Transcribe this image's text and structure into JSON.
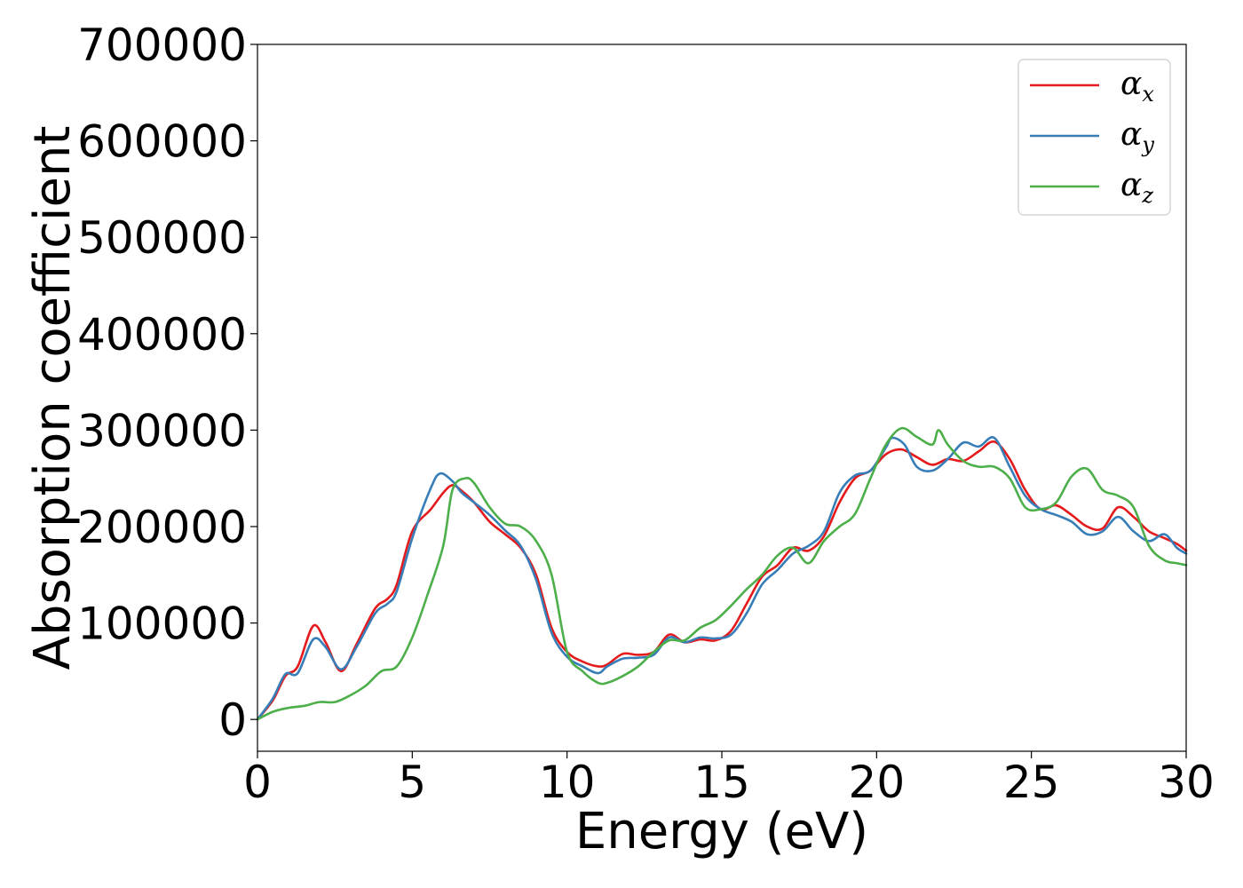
{
  "chart_data": {
    "type": "line",
    "xlabel": "Energy (eV)",
    "ylabel": "Absorption coefficient",
    "xlim": [
      0,
      30
    ],
    "ylim": [
      -33000,
      700000
    ],
    "x_ticks": [
      0,
      5,
      10,
      15,
      20,
      25,
      30
    ],
    "y_ticks": [
      0,
      100000,
      200000,
      300000,
      400000,
      500000,
      600000,
      700000
    ],
    "grid": false,
    "legend_position": "top-right",
    "series": [
      {
        "name": "α",
        "subscript": "x",
        "color": "#e41a1c",
        "x": [
          0,
          0.5,
          0.9,
          1.3,
          1.8,
          2.2,
          2.7,
          3.2,
          3.8,
          4.2,
          4.5,
          5.0,
          5.6,
          6.0,
          6.3,
          6.6,
          7.0,
          7.5,
          8.0,
          8.5,
          9.0,
          9.5,
          10.0,
          10.5,
          11.0,
          11.3,
          11.8,
          12.3,
          12.8,
          13.3,
          13.8,
          14.3,
          14.8,
          15.3,
          15.8,
          16.3,
          16.8,
          17.3,
          17.8,
          18.3,
          18.8,
          19.3,
          19.8,
          20.3,
          20.8,
          21.3,
          21.8,
          22.3,
          22.8,
          23.3,
          23.8,
          24.3,
          24.8,
          25.3,
          25.8,
          26.3,
          26.8,
          27.3,
          27.8,
          28.3,
          28.8,
          29.3,
          29.7,
          30.0
        ],
        "y": [
          0,
          20000,
          45000,
          55000,
          97000,
          80000,
          50000,
          78000,
          115000,
          125000,
          140000,
          195000,
          218000,
          235000,
          243000,
          237000,
          225000,
          205000,
          192000,
          178000,
          150000,
          95000,
          70000,
          60000,
          55000,
          57000,
          68000,
          67000,
          70000,
          88000,
          80000,
          83000,
          82000,
          92000,
          120000,
          148000,
          160000,
          178000,
          175000,
          190000,
          225000,
          250000,
          258000,
          275000,
          280000,
          272000,
          264000,
          270000,
          268000,
          278000,
          288000,
          270000,
          238000,
          218000,
          222000,
          212000,
          200000,
          198000,
          220000,
          210000,
          195000,
          188000,
          182000,
          175000
        ]
      },
      {
        "name": "α",
        "subscript": "y",
        "color": "#377eb8",
        "x": [
          0,
          0.5,
          0.9,
          1.3,
          1.8,
          2.2,
          2.7,
          3.2,
          3.8,
          4.2,
          4.5,
          5.0,
          5.6,
          5.9,
          6.3,
          6.6,
          7.0,
          7.5,
          8.0,
          8.5,
          9.0,
          9.5,
          10.0,
          10.5,
          11.0,
          11.3,
          11.8,
          12.3,
          12.8,
          13.3,
          13.8,
          14.3,
          14.8,
          15.3,
          15.8,
          16.3,
          16.8,
          17.3,
          17.8,
          18.3,
          18.8,
          19.3,
          19.8,
          20.3,
          20.5,
          20.9,
          21.3,
          21.8,
          22.3,
          22.8,
          23.3,
          23.8,
          24.3,
          24.8,
          25.3,
          25.8,
          26.3,
          26.8,
          27.3,
          27.8,
          28.3,
          28.8,
          29.3,
          29.7,
          30.0
        ],
        "y": [
          0,
          22000,
          47000,
          48000,
          83000,
          75000,
          52000,
          75000,
          110000,
          120000,
          133000,
          188000,
          240000,
          255000,
          247000,
          235000,
          225000,
          212000,
          196000,
          180000,
          145000,
          90000,
          65000,
          55000,
          48000,
          55000,
          63000,
          64000,
          67000,
          85000,
          80000,
          85000,
          84000,
          88000,
          110000,
          140000,
          155000,
          172000,
          180000,
          195000,
          235000,
          253000,
          258000,
          282000,
          292000,
          285000,
          262000,
          258000,
          270000,
          287000,
          283000,
          292000,
          262000,
          232000,
          218000,
          212000,
          205000,
          192000,
          195000,
          210000,
          195000,
          185000,
          192000,
          178000,
          172000
        ]
      },
      {
        "name": "α",
        "subscript": "z",
        "color": "#4daf4a",
        "x": [
          0,
          0.5,
          1.0,
          1.5,
          2.0,
          2.5,
          3.0,
          3.5,
          4.0,
          4.5,
          5.0,
          5.5,
          6.0,
          6.3,
          6.7,
          7.0,
          7.5,
          8.0,
          8.5,
          9.0,
          9.5,
          10.0,
          10.5,
          11.0,
          11.3,
          11.8,
          12.3,
          12.8,
          13.3,
          13.8,
          14.3,
          14.8,
          15.3,
          15.8,
          16.3,
          16.8,
          17.3,
          17.8,
          18.3,
          18.8,
          19.3,
          19.8,
          20.3,
          20.8,
          21.3,
          21.8,
          22.0,
          22.3,
          22.8,
          23.3,
          23.8,
          24.3,
          24.8,
          25.3,
          25.8,
          26.3,
          26.8,
          27.3,
          27.8,
          28.3,
          28.8,
          29.3,
          29.7,
          30.0
        ],
        "y": [
          0,
          8000,
          12000,
          14000,
          18000,
          18000,
          25000,
          35000,
          50000,
          55000,
          85000,
          130000,
          180000,
          238000,
          250000,
          245000,
          220000,
          203000,
          200000,
          185000,
          150000,
          70000,
          50000,
          38000,
          38000,
          45000,
          55000,
          70000,
          82000,
          82000,
          95000,
          103000,
          118000,
          135000,
          150000,
          170000,
          178000,
          162000,
          185000,
          200000,
          213000,
          250000,
          285000,
          302000,
          293000,
          285000,
          300000,
          285000,
          268000,
          262000,
          262000,
          250000,
          220000,
          218000,
          225000,
          252000,
          260000,
          238000,
          232000,
          220000,
          180000,
          165000,
          162000,
          160000
        ]
      }
    ]
  }
}
